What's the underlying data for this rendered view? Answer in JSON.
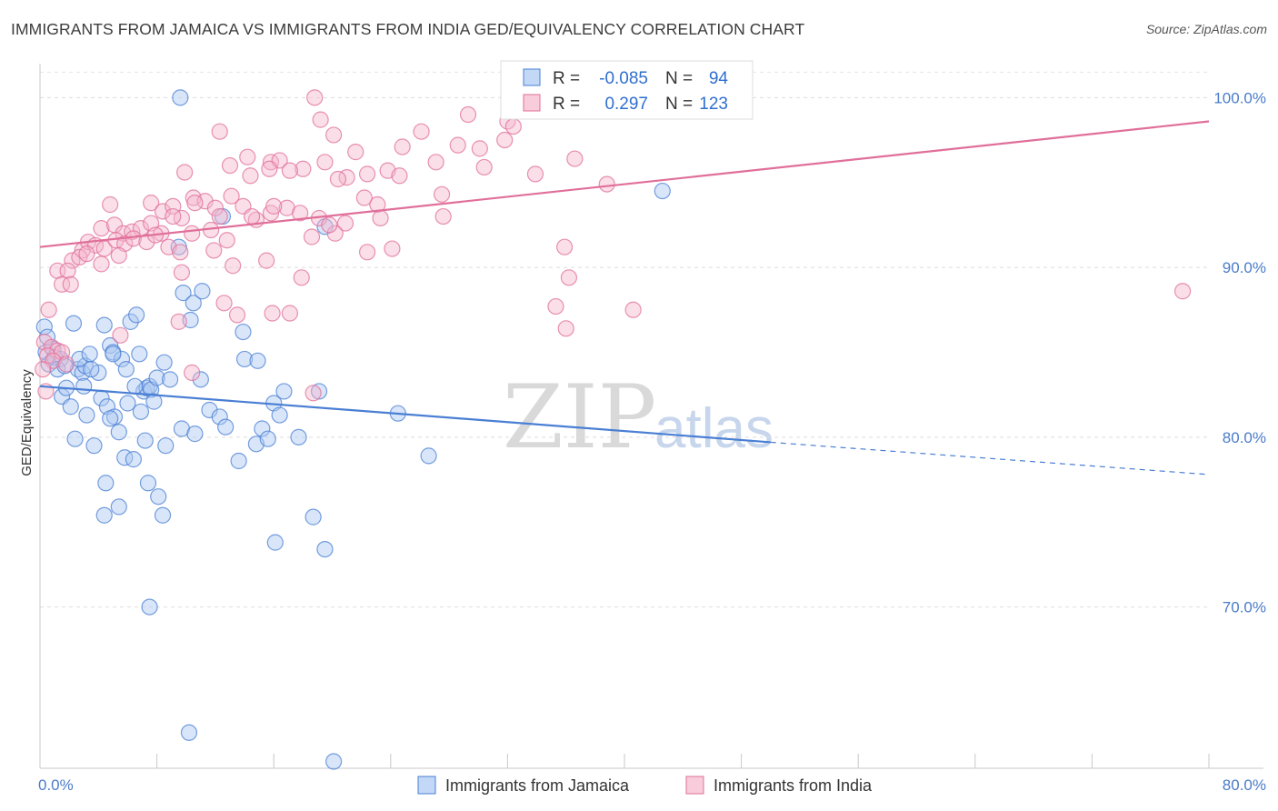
{
  "title": "IMMIGRANTS FROM JAMAICA VS IMMIGRANTS FROM INDIA GED/EQUIVALENCY CORRELATION CHART",
  "source": "Source: ZipAtlas.com",
  "watermark": {
    "zip": "ZIP",
    "atlas": "atlas"
  },
  "colors": {
    "jamaica": "#4a7fd4",
    "india": "#e06f9a",
    "jamaica_fill": "#aac8f2",
    "india_fill": "#f5b6cb"
  },
  "legend_top": {
    "rows": [
      {
        "r_label": "R =",
        "r_value": "-0.085",
        "n_label": "N =",
        "n_value": "94"
      },
      {
        "r_label": "R =",
        "r_value": "0.297",
        "n_label": "N =",
        "n_value": "123"
      }
    ]
  },
  "chart_data": {
    "type": "scatter",
    "title": "IMMIGRANTS FROM JAMAICA VS IMMIGRANTS FROM INDIA GED/EQUIVALENCY CORRELATION CHART",
    "xlabel": "",
    "ylabel": "GED/Equivalency",
    "xlim": [
      0,
      80
    ],
    "ylim": [
      60.5,
      102
    ],
    "x_tick_labels": [
      "0.0%",
      "80.0%"
    ],
    "y_ticks": [
      70,
      80,
      90,
      100
    ],
    "y_tick_labels": [
      "70.0%",
      "80.0%",
      "90.0%",
      "100.0%"
    ],
    "grid": true,
    "legend_position": "bottom",
    "series": [
      {
        "name": "Immigrants from Jamaica",
        "R": -0.085,
        "N": 94,
        "trend": {
          "x": [
            0,
            50
          ],
          "y": [
            83.0,
            79.7
          ],
          "dashed_to": [
            80,
            77.8
          ]
        },
        "points": [
          [
            9.6,
            100.0
          ],
          [
            0.4,
            85.0
          ],
          [
            0.9,
            85.2
          ],
          [
            1.4,
            84.6
          ],
          [
            0.6,
            84.3
          ],
          [
            1.0,
            84.7
          ],
          [
            0.3,
            86.5
          ],
          [
            0.5,
            85.9
          ],
          [
            1.2,
            84.0
          ],
          [
            1.5,
            82.4
          ],
          [
            1.8,
            82.9
          ],
          [
            2.3,
            86.7
          ],
          [
            2.6,
            84.0
          ],
          [
            2.9,
            83.8
          ],
          [
            3.1,
            84.2
          ],
          [
            2.7,
            84.6
          ],
          [
            3.4,
            84.9
          ],
          [
            4.0,
            83.8
          ],
          [
            4.4,
            86.6
          ],
          [
            4.8,
            85.4
          ],
          [
            5.0,
            85.0
          ],
          [
            5.6,
            84.6
          ],
          [
            5.9,
            84.0
          ],
          [
            6.2,
            86.8
          ],
          [
            6.6,
            87.2
          ],
          [
            6.8,
            84.9
          ],
          [
            7.1,
            82.7
          ],
          [
            7.3,
            82.9
          ],
          [
            7.5,
            83.0
          ],
          [
            7.6,
            82.8
          ],
          [
            8.0,
            83.5
          ],
          [
            8.5,
            84.4
          ],
          [
            8.9,
            83.4
          ],
          [
            9.5,
            91.2
          ],
          [
            9.8,
            88.5
          ],
          [
            10.5,
            87.9
          ],
          [
            10.3,
            86.9
          ],
          [
            11.0,
            83.4
          ],
          [
            11.1,
            88.6
          ],
          [
            12.5,
            93.0
          ],
          [
            13.9,
            86.2
          ],
          [
            14.0,
            84.6
          ],
          [
            14.9,
            84.5
          ],
          [
            16.0,
            82.0
          ],
          [
            16.7,
            82.7
          ],
          [
            17.7,
            80.0
          ],
          [
            19.5,
            92.4
          ],
          [
            24.5,
            81.4
          ],
          [
            26.6,
            78.9
          ],
          [
            42.6,
            94.5
          ],
          [
            2.1,
            81.8
          ],
          [
            2.4,
            79.9
          ],
          [
            3.2,
            81.3
          ],
          [
            3.7,
            79.5
          ],
          [
            4.2,
            82.3
          ],
          [
            4.6,
            81.8
          ],
          [
            5.1,
            81.2
          ],
          [
            5.4,
            80.3
          ],
          [
            5.8,
            78.8
          ],
          [
            6.4,
            78.7
          ],
          [
            6.9,
            81.5
          ],
          [
            7.2,
            79.8
          ],
          [
            7.8,
            82.1
          ],
          [
            8.6,
            79.5
          ],
          [
            9.7,
            80.5
          ],
          [
            10.6,
            80.2
          ],
          [
            11.6,
            81.6
          ],
          [
            12.3,
            81.2
          ],
          [
            12.7,
            80.6
          ],
          [
            13.6,
            78.6
          ],
          [
            14.8,
            79.6
          ],
          [
            15.2,
            80.5
          ],
          [
            15.6,
            79.9
          ],
          [
            16.4,
            81.3
          ],
          [
            19.1,
            82.7
          ],
          [
            5.0,
            84.9
          ],
          [
            6.0,
            82.0
          ],
          [
            7.4,
            77.3
          ],
          [
            8.1,
            76.5
          ],
          [
            5.4,
            75.9
          ],
          [
            4.5,
            77.3
          ],
          [
            4.4,
            75.4
          ],
          [
            8.4,
            75.4
          ],
          [
            16.1,
            73.8
          ],
          [
            18.7,
            75.3
          ],
          [
            19.5,
            73.4
          ],
          [
            7.5,
            70.0
          ],
          [
            10.2,
            62.6
          ],
          [
            20.1,
            60.9
          ],
          [
            1.7,
            84.2
          ],
          [
            3.0,
            83.0
          ],
          [
            3.5,
            84.0
          ],
          [
            4.8,
            81.1
          ],
          [
            6.5,
            83.0
          ]
        ]
      },
      {
        "name": "Immigrants from India",
        "R": 0.297,
        "N": 123,
        "trend": {
          "x": [
            0,
            80
          ],
          "y": [
            91.2,
            98.6
          ]
        },
        "points": [
          [
            18.8,
            100.0
          ],
          [
            19.2,
            98.7
          ],
          [
            29.3,
            99.0
          ],
          [
            26.1,
            98.0
          ],
          [
            32.0,
            98.6
          ],
          [
            20.1,
            97.8
          ],
          [
            12.3,
            98.0
          ],
          [
            21.6,
            96.8
          ],
          [
            30.1,
            97.0
          ],
          [
            28.6,
            97.2
          ],
          [
            24.8,
            97.1
          ],
          [
            31.8,
            97.5
          ],
          [
            32.4,
            98.3
          ],
          [
            36.6,
            96.4
          ],
          [
            27.1,
            96.2
          ],
          [
            30.4,
            95.9
          ],
          [
            13.0,
            96.0
          ],
          [
            14.2,
            96.5
          ],
          [
            15.8,
            96.2
          ],
          [
            16.4,
            96.3
          ],
          [
            18.0,
            95.8
          ],
          [
            21.0,
            95.3
          ],
          [
            22.4,
            95.5
          ],
          [
            23.8,
            95.7
          ],
          [
            33.9,
            95.5
          ],
          [
            9.9,
            95.6
          ],
          [
            10.5,
            94.1
          ],
          [
            11.3,
            93.9
          ],
          [
            12.0,
            93.5
          ],
          [
            13.1,
            94.2
          ],
          [
            14.4,
            95.4
          ],
          [
            15.7,
            95.8
          ],
          [
            17.1,
            95.7
          ],
          [
            19.5,
            96.2
          ],
          [
            20.4,
            95.2
          ],
          [
            22.2,
            94.1
          ],
          [
            23.1,
            93.7
          ],
          [
            24.6,
            95.4
          ],
          [
            27.5,
            94.3
          ],
          [
            38.8,
            94.9
          ],
          [
            4.8,
            93.7
          ],
          [
            7.6,
            93.8
          ],
          [
            8.4,
            93.3
          ],
          [
            9.1,
            93.6
          ],
          [
            9.7,
            92.9
          ],
          [
            10.6,
            93.8
          ],
          [
            12.3,
            93.0
          ],
          [
            13.9,
            93.6
          ],
          [
            14.8,
            92.8
          ],
          [
            15.8,
            93.2
          ],
          [
            16.9,
            93.5
          ],
          [
            17.8,
            93.2
          ],
          [
            19.1,
            92.9
          ],
          [
            20.9,
            92.6
          ],
          [
            23.3,
            92.9
          ],
          [
            27.6,
            93.0
          ],
          [
            4.2,
            92.3
          ],
          [
            5.1,
            92.5
          ],
          [
            5.7,
            92.0
          ],
          [
            6.3,
            92.1
          ],
          [
            6.9,
            92.3
          ],
          [
            7.6,
            92.6
          ],
          [
            8.3,
            92.0
          ],
          [
            9.1,
            93.0
          ],
          [
            10.4,
            92.0
          ],
          [
            11.7,
            92.2
          ],
          [
            12.8,
            91.6
          ],
          [
            14.5,
            93.0
          ],
          [
            16.0,
            93.6
          ],
          [
            18.6,
            91.8
          ],
          [
            20.2,
            92.0
          ],
          [
            2.9,
            91.0
          ],
          [
            3.3,
            91.5
          ],
          [
            3.8,
            91.3
          ],
          [
            4.4,
            91.1
          ],
          [
            5.2,
            91.6
          ],
          [
            5.8,
            91.4
          ],
          [
            6.4,
            91.7
          ],
          [
            7.3,
            91.5
          ],
          [
            7.9,
            91.9
          ],
          [
            8.8,
            91.2
          ],
          [
            9.6,
            90.9
          ],
          [
            11.9,
            91.0
          ],
          [
            2.2,
            90.4
          ],
          [
            2.7,
            90.6
          ],
          [
            3.2,
            90.8
          ],
          [
            4.2,
            90.2
          ],
          [
            5.4,
            90.7
          ],
          [
            1.2,
            89.8
          ],
          [
            1.9,
            89.8
          ],
          [
            1.5,
            89.0
          ],
          [
            2.1,
            89.0
          ],
          [
            9.7,
            89.7
          ],
          [
            13.2,
            90.1
          ],
          [
            15.5,
            90.4
          ],
          [
            17.9,
            89.4
          ],
          [
            22.4,
            90.9
          ],
          [
            24.1,
            91.1
          ],
          [
            36.2,
            89.4
          ],
          [
            35.9,
            91.2
          ],
          [
            0.6,
            87.5
          ],
          [
            9.5,
            86.8
          ],
          [
            12.6,
            87.9
          ],
          [
            13.5,
            87.2
          ],
          [
            15.9,
            87.3
          ],
          [
            17.1,
            87.3
          ],
          [
            35.3,
            87.7
          ],
          [
            36.0,
            86.4
          ],
          [
            40.6,
            87.5
          ],
          [
            78.2,
            88.6
          ],
          [
            0.3,
            85.6
          ],
          [
            0.8,
            85.3
          ],
          [
            1.2,
            85.1
          ],
          [
            0.5,
            84.8
          ],
          [
            1.5,
            85.0
          ],
          [
            0.9,
            84.5
          ],
          [
            0.2,
            84.0
          ],
          [
            1.8,
            84.3
          ],
          [
            10.4,
            83.8
          ],
          [
            18.7,
            82.6
          ],
          [
            5.5,
            86.0
          ],
          [
            19.8,
            92.5
          ],
          [
            0.4,
            82.7
          ]
        ]
      }
    ]
  },
  "legend_bottom": {
    "items": [
      "Immigrants from Jamaica",
      "Immigrants from India"
    ]
  }
}
